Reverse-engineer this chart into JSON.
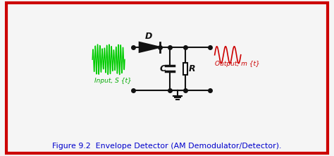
{
  "bg_color": "#f5f5f5",
  "border_color": "#cc0000",
  "title_text": "Figure 9.2  Envelope Detector (AM Demodulator/Detector).",
  "title_color": "#0000cc",
  "title_fontsize": 11,
  "input_label": "Input, S {t}",
  "input_color": "#00aa00",
  "output_label": "Output, m {t}",
  "output_color": "#cc0000",
  "circuit_color": "#111111",
  "label_D": "D",
  "label_C": "C",
  "label_R": "R"
}
